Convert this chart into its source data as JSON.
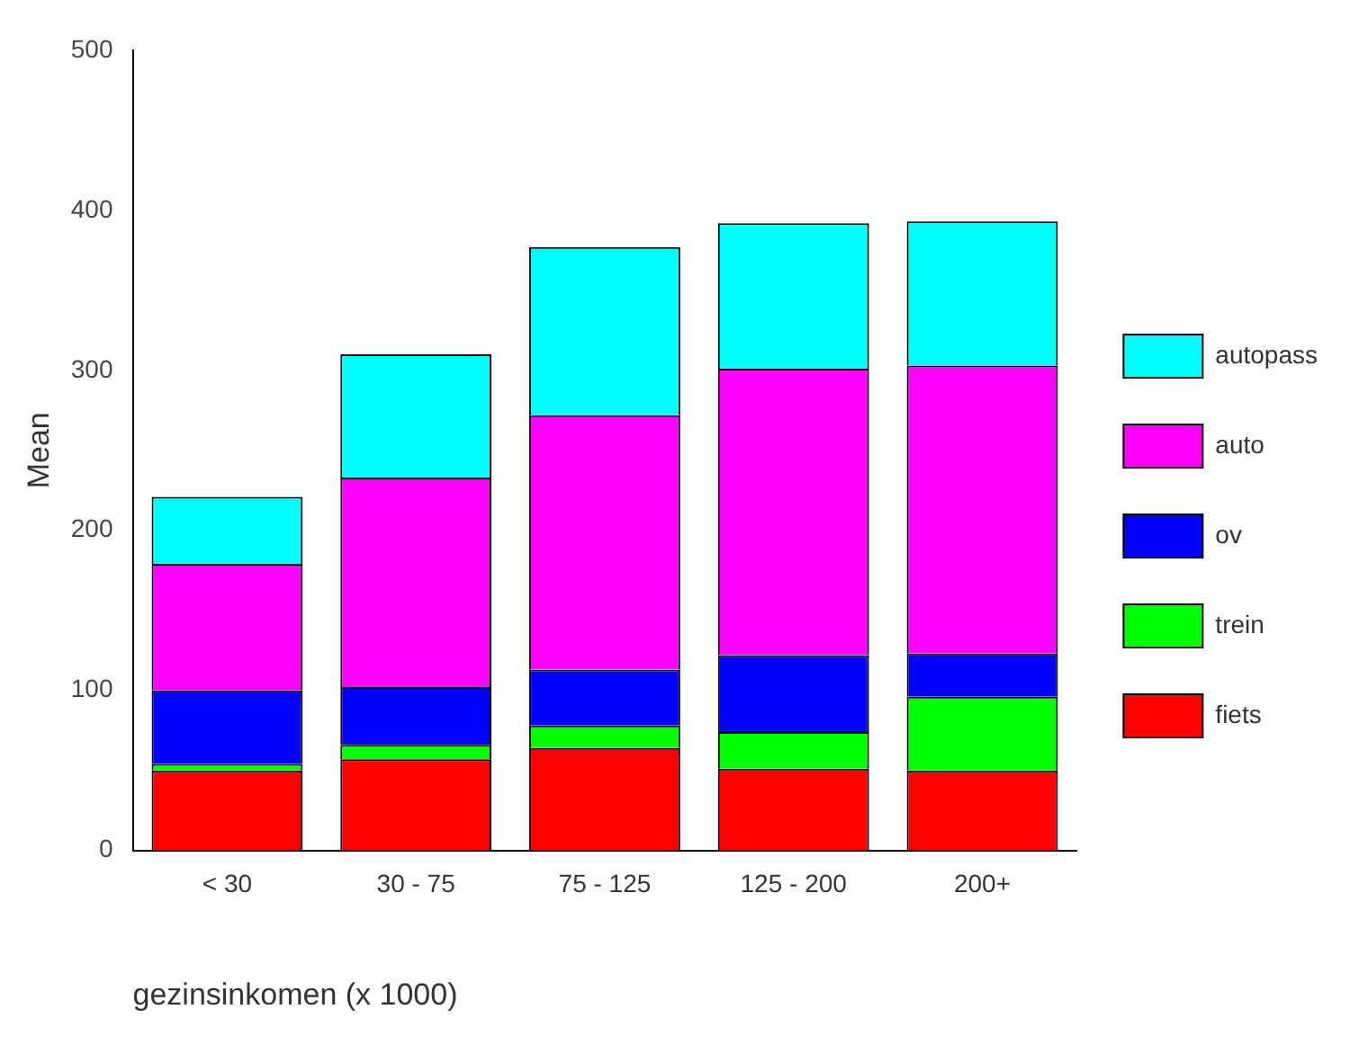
{
  "chart_data": {
    "type": "bar",
    "stacked": true,
    "xlabel": "gezinsinkomen (x 1000)",
    "ylabel": "Mean",
    "categories": [
      "< 30",
      "30 - 75",
      "75 - 125",
      "125 - 200",
      "200+"
    ],
    "series": [
      {
        "name": "fiets",
        "color": "#ff0000",
        "values": [
          50,
          57,
          64,
          51,
          50
        ]
      },
      {
        "name": "trein",
        "color": "#00ff00",
        "values": [
          4,
          9,
          14,
          23,
          46
        ]
      },
      {
        "name": "ov",
        "color": "#0000ff",
        "values": [
          46,
          36,
          35,
          48,
          27
        ]
      },
      {
        "name": "auto",
        "color": "#ff00ff",
        "values": [
          79,
          131,
          159,
          179,
          180
        ]
      },
      {
        "name": "autopass",
        "color": "#00ffff",
        "values": [
          42,
          77,
          105,
          91,
          90
        ]
      }
    ],
    "ylim": [
      0,
      500
    ],
    "yticks": [
      0,
      100,
      200,
      300,
      400,
      500
    ],
    "grid": false,
    "legend": "right"
  }
}
